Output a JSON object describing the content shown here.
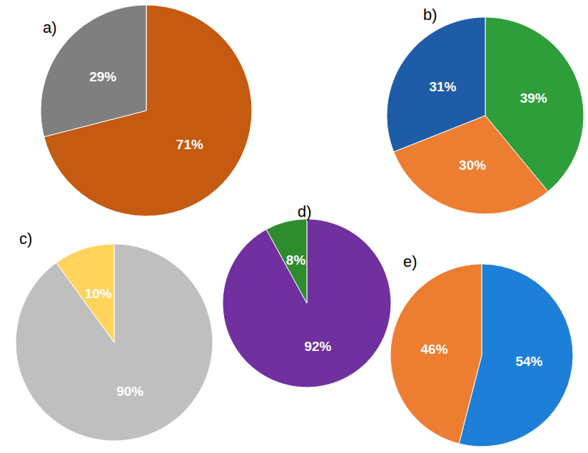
{
  "chart_data": [
    {
      "type": "pie",
      "title": "a)",
      "values": [
        71,
        29
      ],
      "value_labels": [
        "71%",
        "29%"
      ],
      "colors": [
        "#c55a11",
        "#7f7f7f"
      ],
      "data_labels": true
    },
    {
      "type": "pie",
      "title": "b)",
      "values": [
        39,
        30,
        31
      ],
      "value_labels": [
        "39%",
        "30%",
        "31%"
      ],
      "colors": [
        "#2e9e3a",
        "#ed7d31",
        "#1f5ca8"
      ],
      "data_labels": true
    },
    {
      "type": "pie",
      "title": "c)",
      "values": [
        90,
        10
      ],
      "value_labels": [
        "90%",
        "10%"
      ],
      "colors": [
        "#bfbfbf",
        "#ffd35c"
      ],
      "data_labels": true
    },
    {
      "type": "pie",
      "title": "d)",
      "values": [
        92,
        8
      ],
      "value_labels": [
        "92%",
        "8%"
      ],
      "colors": [
        "#7030a0",
        "#2e8b2e"
      ],
      "data_labels": true
    },
    {
      "type": "pie",
      "title": "e)",
      "values": [
        54,
        46
      ],
      "value_labels": [
        "54%",
        "46%"
      ],
      "colors": [
        "#1e7fd8",
        "#ed7d31"
      ],
      "data_labels": true
    }
  ]
}
